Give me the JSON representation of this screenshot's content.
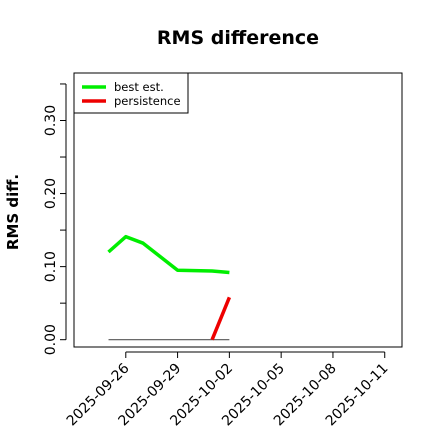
{
  "chart_data": {
    "type": "line",
    "title": "RMS difference",
    "xlabel": "",
    "ylabel": "RMS diff.",
    "y_ticks": [
      0.0,
      0.1,
      0.2,
      0.3
    ],
    "y_tick_labels": [
      "0.00",
      "0.10",
      "0.20",
      "0.30"
    ],
    "ylim": [
      -0.01,
      0.365
    ],
    "xlim": [
      "2025-09-23",
      "2025-10-12"
    ],
    "x_tick_labels": [
      "2025-09-26",
      "2025-09-29",
      "2025-10-02",
      "2025-10-05",
      "2025-10-08",
      "2025-10-11"
    ],
    "grid": false,
    "legend_position": "top-left",
    "series": [
      {
        "name": "best est.",
        "color": "#00ee00",
        "x": [
          "2025-09-25",
          "2025-09-26",
          "2025-09-27",
          "2025-09-29",
          "2025-10-01",
          "2025-10-02"
        ],
        "y": [
          0.12,
          0.141,
          0.132,
          0.095,
          0.094,
          0.092
        ]
      },
      {
        "name": "persistence",
        "color": "#ee0000",
        "x": [
          "2025-10-01",
          "2025-10-02"
        ],
        "y": [
          0.0,
          0.058
        ]
      }
    ],
    "reference_line": {
      "color": "#555555",
      "x": [
        "2025-09-25",
        "2025-10-02"
      ],
      "y": [
        0.0,
        0.0
      ]
    }
  }
}
